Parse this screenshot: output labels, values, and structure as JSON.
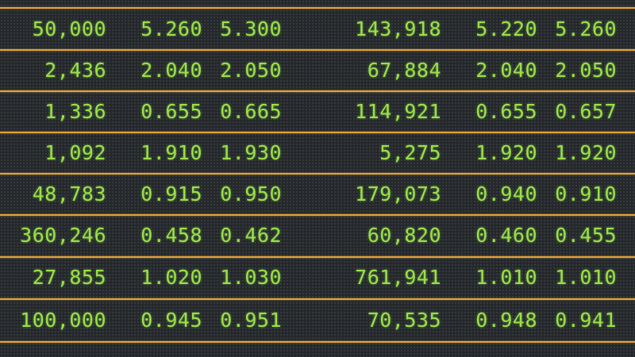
{
  "colors": {
    "text": "#9be04a",
    "divider": "#e2a23b",
    "background": "#25282b"
  },
  "rows": [
    [
      "50,000",
      "5.260",
      "5.300",
      "143,918",
      "5.220",
      "5.260"
    ],
    [
      "2,436",
      "2.040",
      "2.050",
      "67,884",
      "2.040",
      "2.050"
    ],
    [
      "1,336",
      "0.655",
      "0.665",
      "114,921",
      "0.655",
      "0.657"
    ],
    [
      "1,092",
      "1.910",
      "1.930",
      "5,275",
      "1.920",
      "1.920"
    ],
    [
      "48,783",
      "0.915",
      "0.950",
      "179,073",
      "0.940",
      "0.910"
    ],
    [
      "360,246",
      "0.458",
      "0.462",
      "60,820",
      "0.460",
      "0.455"
    ],
    [
      "27,855",
      "1.020",
      "1.030",
      "761,941",
      "1.010",
      "1.010"
    ],
    [
      "100,000",
      "0.945",
      "0.951",
      "70,535",
      "0.948",
      "0.941"
    ]
  ]
}
